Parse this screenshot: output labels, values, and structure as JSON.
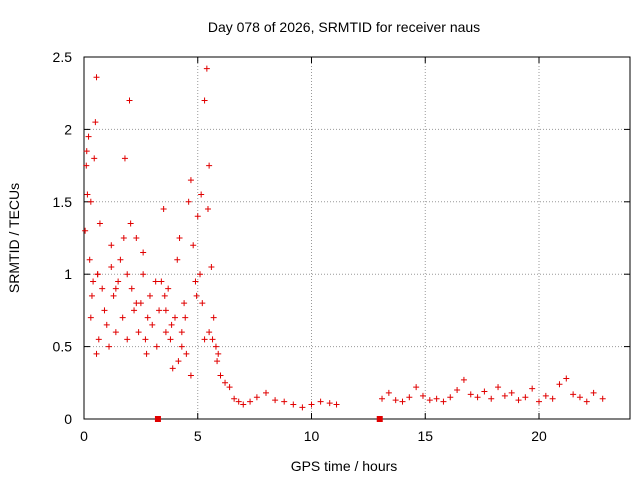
{
  "chart_data": {
    "type": "scatter",
    "title": "Day 078 of 2026, SRMTID for receiver naus",
    "xlabel": "GPS time / hours",
    "ylabel": "SRMTID / TECUs",
    "xlim": [
      0,
      24
    ],
    "ylim": [
      0,
      2.5
    ],
    "x_ticks": [
      0,
      5,
      10,
      15,
      20
    ],
    "x_tick_labels": [
      "0",
      "5",
      "10",
      "15",
      "20"
    ],
    "y_ticks": [
      0,
      0.5,
      1,
      1.5,
      2,
      2.5
    ],
    "y_tick_labels": [
      "0",
      "0.5",
      "1",
      "1.5",
      "2",
      "2.5"
    ],
    "grid": true,
    "marker": "+",
    "color": "#e00000",
    "series": [
      {
        "name": "SRMTID",
        "x": [
          0.05,
          0.1,
          0.15,
          0.2,
          0.25,
          0.3,
          0.35,
          0.4,
          0.45,
          0.5,
          0.55,
          0.6,
          0.65,
          0.7,
          0.8,
          0.9,
          1.0,
          1.1,
          1.2,
          1.3,
          1.4,
          1.5,
          1.6,
          1.7,
          1.8,
          1.9,
          2.0,
          2.1,
          2.2,
          2.3,
          2.4,
          2.5,
          2.6,
          2.7,
          2.8,
          2.9,
          3.0,
          3.2,
          3.4,
          3.5,
          3.6,
          3.7,
          3.8,
          3.9,
          4.0,
          4.1,
          4.2,
          4.3,
          4.4,
          4.5,
          4.6,
          4.7,
          4.8,
          4.9,
          5.0,
          5.1,
          5.2,
          5.3,
          5.4,
          5.5,
          5.6,
          5.7,
          5.8,
          5.9,
          6.0,
          6.2,
          6.4,
          6.6,
          6.8,
          7.0,
          7.3,
          7.6,
          8.0,
          8.4,
          8.8,
          9.2,
          9.6,
          10.0,
          10.4,
          10.8,
          11.1,
          13.1,
          13.4,
          13.7,
          14.0,
          14.3,
          14.6,
          14.9,
          15.2,
          15.5,
          15.8,
          16.1,
          16.4,
          16.7,
          17.0,
          17.3,
          17.6,
          17.9,
          18.2,
          18.5,
          18.8,
          19.1,
          19.4,
          19.7,
          20.0,
          20.3,
          20.6,
          20.9,
          21.2,
          21.5,
          21.8,
          22.1,
          22.4,
          22.8,
          0.3,
          0.6,
          1.4,
          1.9,
          2.3,
          2.6,
          3.3,
          3.6,
          4.3,
          4.7,
          5.3,
          5.5,
          0.12,
          0.55,
          1.2,
          1.75,
          2.05,
          2.75,
          3.15,
          3.55,
          3.85,
          4.15,
          4.45,
          4.95,
          5.15,
          5.45,
          5.65,
          5.85
        ],
        "y": [
          1.3,
          1.75,
          1.55,
          1.95,
          1.1,
          0.7,
          0.85,
          0.95,
          1.8,
          2.05,
          2.36,
          1.0,
          0.55,
          1.35,
          0.9,
          0.75,
          0.65,
          0.5,
          1.2,
          0.85,
          0.6,
          0.95,
          1.1,
          0.7,
          1.8,
          1.0,
          2.2,
          0.9,
          0.75,
          1.25,
          0.6,
          0.8,
          1.0,
          0.55,
          0.7,
          0.85,
          0.65,
          0.5,
          0.95,
          1.45,
          0.75,
          0.9,
          0.55,
          0.35,
          0.7,
          1.1,
          1.25,
          0.6,
          0.8,
          0.45,
          1.5,
          1.65,
          1.2,
          0.95,
          1.4,
          1.0,
          0.8,
          2.2,
          2.42,
          1.75,
          1.05,
          0.7,
          0.5,
          0.45,
          0.3,
          0.25,
          0.22,
          0.14,
          0.12,
          0.1,
          0.12,
          0.15,
          0.18,
          0.13,
          0.12,
          0.1,
          0.08,
          0.1,
          0.12,
          0.11,
          0.1,
          0.14,
          0.18,
          0.13,
          0.12,
          0.15,
          0.22,
          0.16,
          0.13,
          0.14,
          0.12,
          0.15,
          0.2,
          0.27,
          0.17,
          0.15,
          0.19,
          0.14,
          0.22,
          0.16,
          0.18,
          0.13,
          0.15,
          0.21,
          0.12,
          0.16,
          0.14,
          0.24,
          0.28,
          0.17,
          0.15,
          0.12,
          0.18,
          0.14,
          1.5,
          1.0,
          0.9,
          0.55,
          0.8,
          1.15,
          0.75,
          0.6,
          0.5,
          0.3,
          0.55,
          0.6,
          1.85,
          0.45,
          1.05,
          1.25,
          1.35,
          0.45,
          0.95,
          0.85,
          0.65,
          0.4,
          0.7,
          0.85,
          1.55,
          1.45,
          0.55,
          0.4
        ]
      }
    ],
    "zero_markers_x": [
      3.25,
      13.0
    ]
  }
}
